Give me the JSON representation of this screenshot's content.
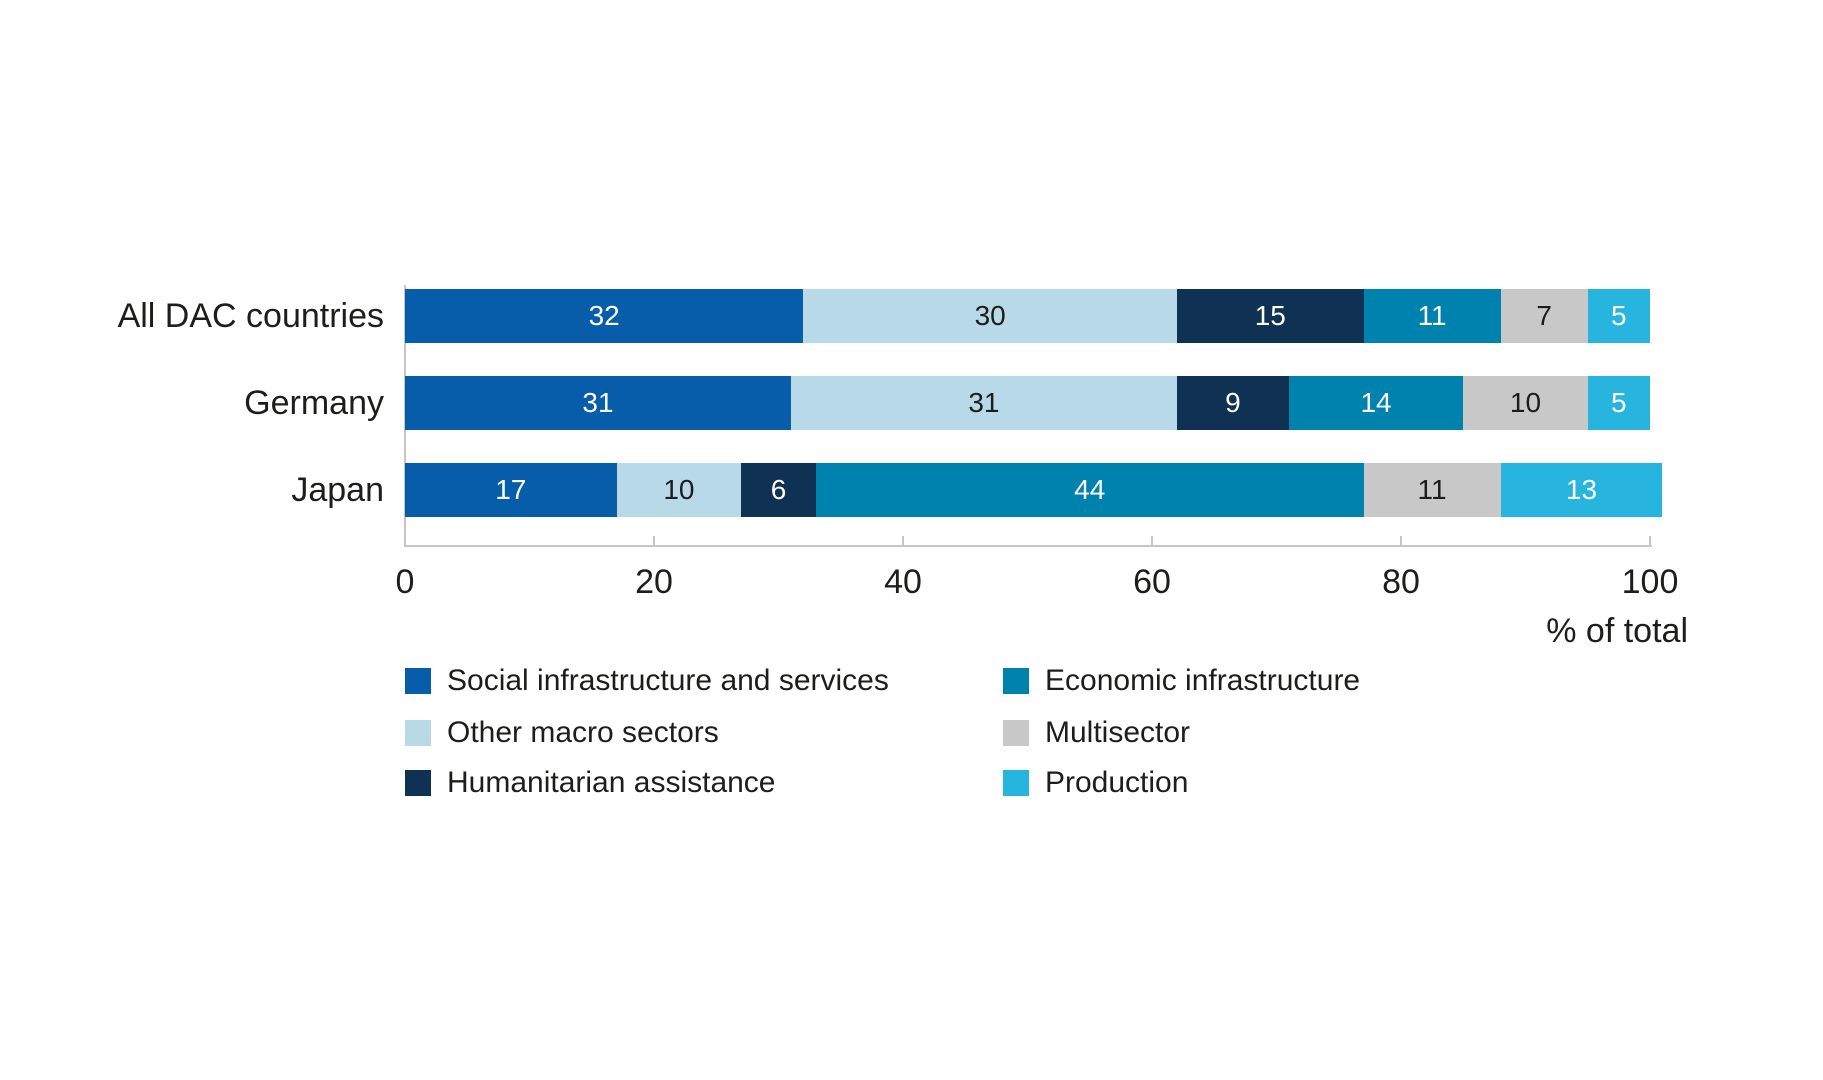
{
  "chart_data": {
    "type": "bar",
    "variant": "horizontal-stacked",
    "categories": [
      "All DAC countries",
      "Germany",
      "Japan"
    ],
    "series": [
      {
        "name": "Social infrastructure and services",
        "color": "#075da9",
        "label_color": "#ffffff",
        "values": [
          32,
          31,
          17
        ]
      },
      {
        "name": "Other macro sectors",
        "color": "#b7d9e8",
        "label_color": "#1d1d1b",
        "values": [
          30,
          31,
          10
        ]
      },
      {
        "name": "Humanitarian assistance",
        "color": "#0f3153",
        "label_color": "#ffffff",
        "values": [
          15,
          9,
          6
        ]
      },
      {
        "name": "Economic infrastructure",
        "color": "#0082ae",
        "label_color": "#ffffff",
        "values": [
          11,
          14,
          44
        ]
      },
      {
        "name": "Multisector",
        "color": "#c8c8c9",
        "label_color": "#1d1d1b",
        "values": [
          7,
          10,
          11
        ]
      },
      {
        "name": "Production",
        "color": "#27b5e0",
        "label_color": "#ffffff",
        "values": [
          5,
          5,
          13
        ]
      }
    ],
    "x_axis": {
      "min": 0,
      "max": 100,
      "ticks": [
        0,
        20,
        40,
        60,
        80,
        100
      ],
      "title": "% of total",
      "grid": false
    },
    "legend": {
      "position": "bottom",
      "columns": 2
    }
  },
  "colors": {
    "axis": "#c6c6c6",
    "text": "#1d1d1b",
    "background": "#ffffff"
  }
}
